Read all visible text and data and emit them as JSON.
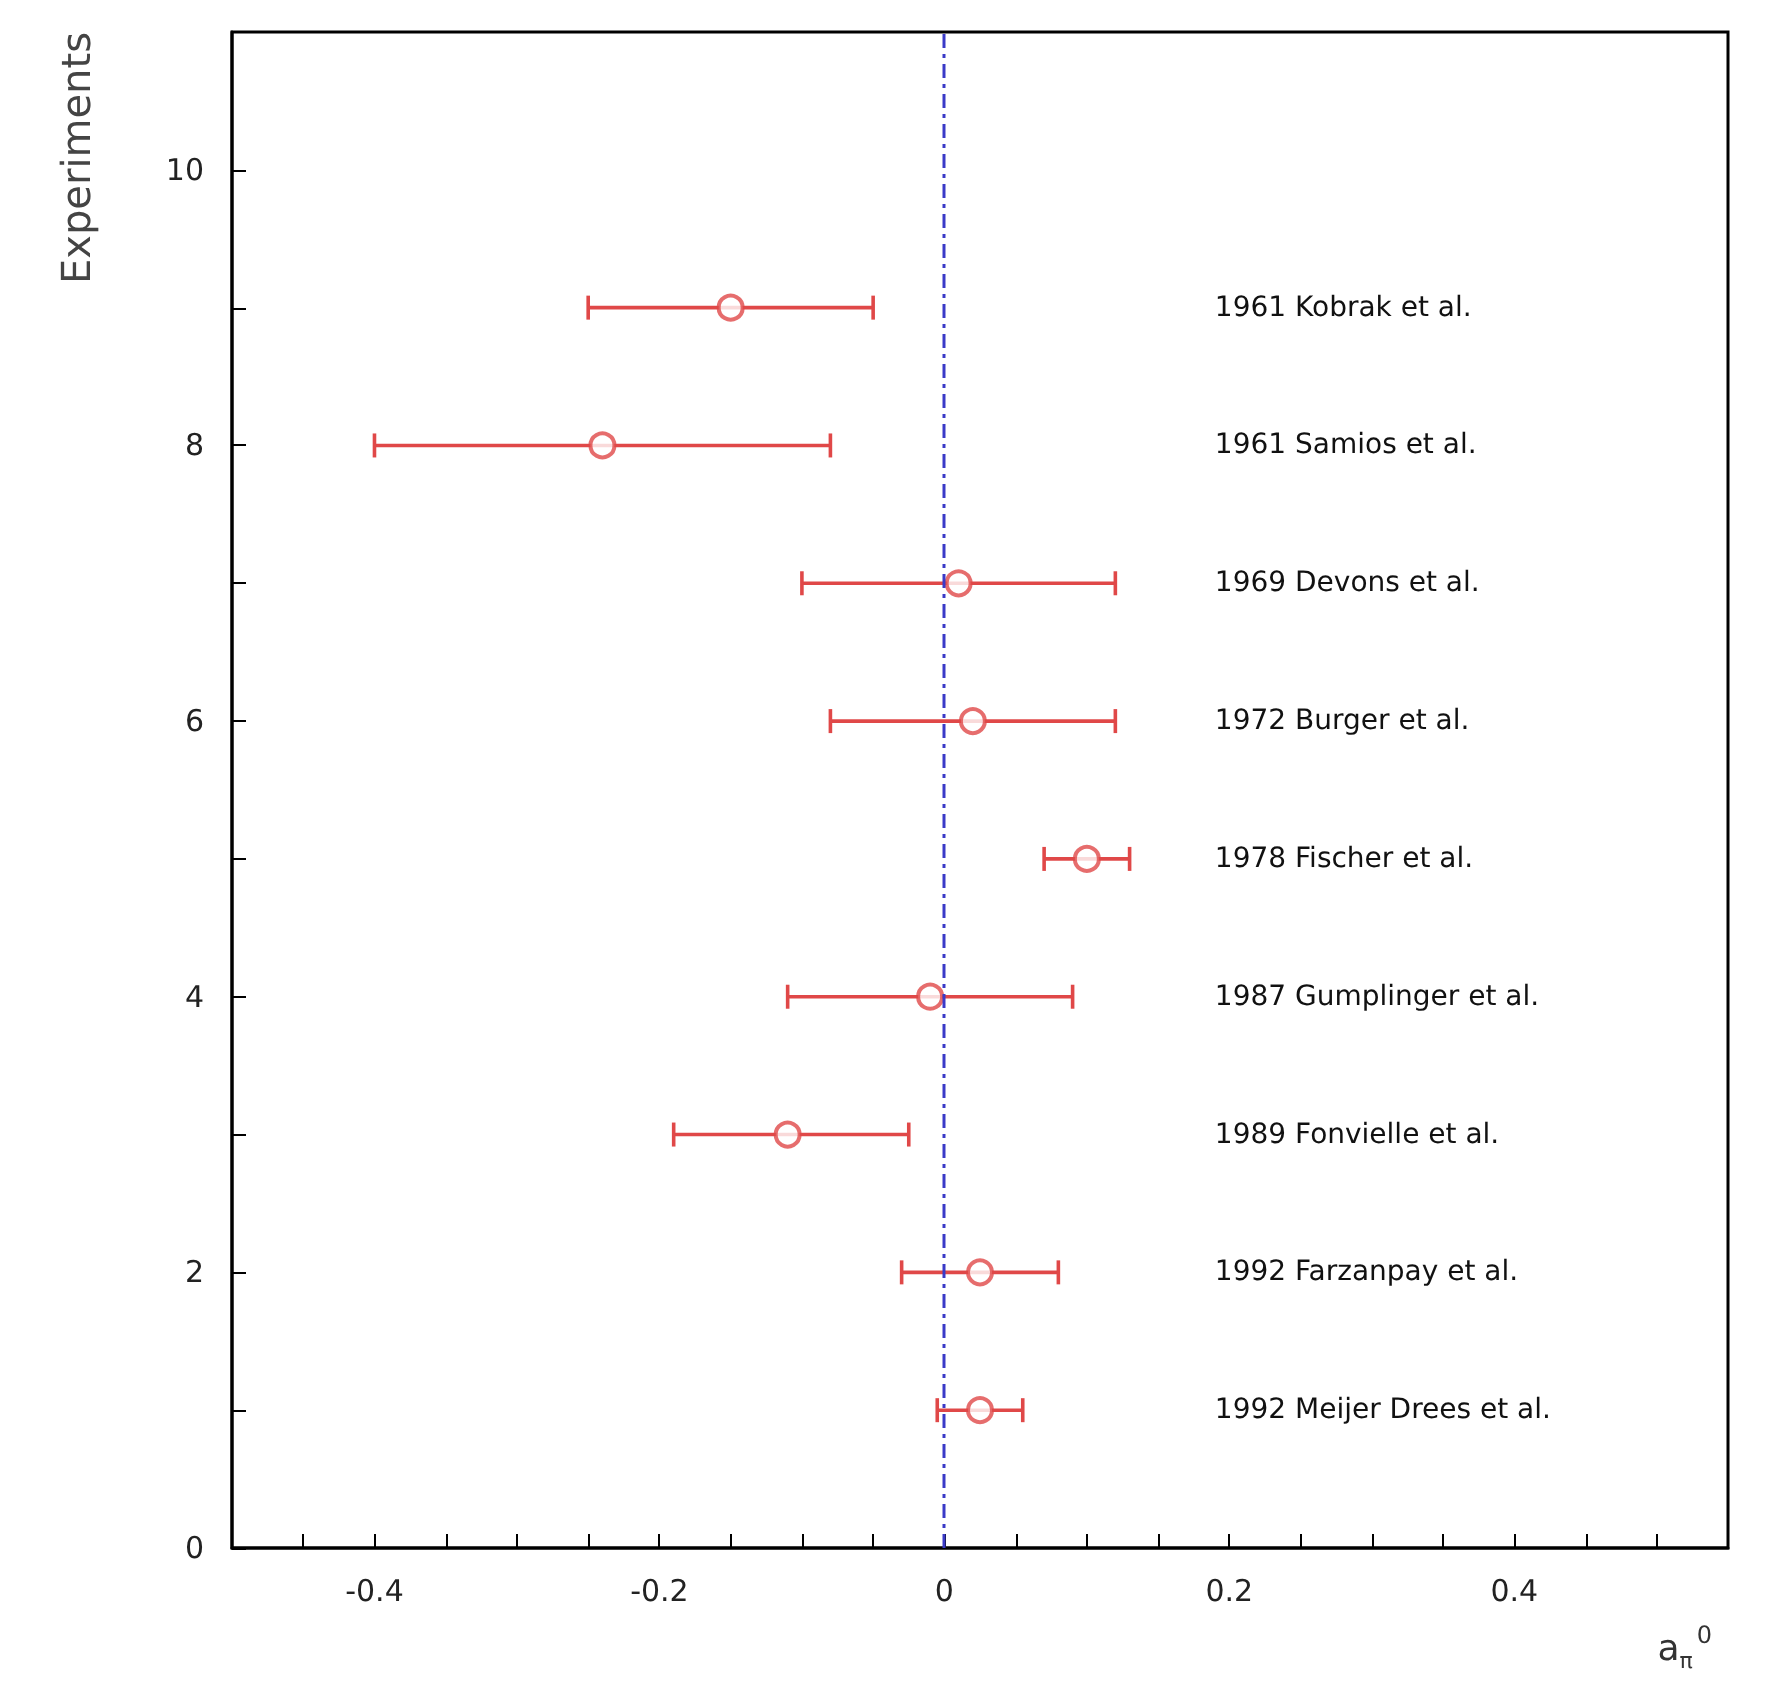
{
  "chart_data": {
    "type": "scatter",
    "xlabel": "a$_{π}$$^{0}$",
    "ylabel": "Experiments",
    "x": [
      -0.15,
      -0.24,
      0.01,
      0.02,
      0.1,
      -0.01,
      -0.11,
      0.025,
      0.025
    ],
    "values": [
      9,
      8,
      7,
      6,
      5,
      4,
      3,
      2,
      1
    ],
    "xerrors": [
      [
        -0.25,
        -0.05
      ],
      [
        -0.4,
        -0.08
      ],
      [
        -0.1,
        0.12
      ],
      [
        -0.08,
        0.12
      ],
      [
        0.07,
        0.13
      ],
      [
        -0.11,
        0.09
      ],
      [
        -0.19,
        -0.025
      ],
      [
        -0.03,
        0.08
      ],
      [
        -0.005,
        0.055
      ]
    ],
    "color": "#e04848",
    "marker": "circle",
    "xlim": [
      -0.5,
      0.55
    ],
    "xticks": [
      {
        "value": -0.45,
        "label": null
      },
      -0.4,
      {
        "value": -0.35,
        "label": null
      },
      {
        "value": -0.3,
        "label": null
      },
      {
        "value": -0.25,
        "label": null
      },
      -0.2,
      {
        "value": -0.15,
        "label": null
      },
      {
        "value": -0.1,
        "label": null
      },
      {
        "value": -0.05,
        "label": null
      },
      0,
      {
        "value": 0.05,
        "label": null
      },
      {
        "value": 0.1,
        "label": null
      },
      {
        "value": 0.15,
        "label": null
      },
      0.2,
      {
        "value": 0.25,
        "label": null
      },
      {
        "value": 0.3,
        "label": null
      },
      {
        "value": 0.35,
        "label": null
      },
      0.4,
      {
        "value": 0.45,
        "label": null
      },
      {
        "value": 0.5,
        "label": null
      }
    ],
    "ylim": [
      0,
      11
    ],
    "yticks": [
      0,
      {
        "value": 1,
        "label": null
      },
      2,
      {
        "value": 3,
        "label": null
      },
      4,
      {
        "value": 5,
        "label": null
      },
      6,
      {
        "value": 7,
        "label": null
      },
      8,
      {
        "value": 9,
        "label": null
      },
      10
    ],
    "ref_lines": [
      {
        "axis": "x",
        "value": 0,
        "color": "#3a3ac8",
        "line_style": "dashed"
      }
    ],
    "annotations": [
      "1961 Kobrak et al.",
      "1961 Samios et al.",
      "1969 Devons et al.",
      "1972 Burger et al.",
      "1978 Fischer et al.",
      "1987 Gumplinger et al.",
      "1989 Fonvielle et al.",
      "1992 Farzanpay et al.",
      "1992 Meijer Drees et al."
    ],
    "grid": false
  }
}
